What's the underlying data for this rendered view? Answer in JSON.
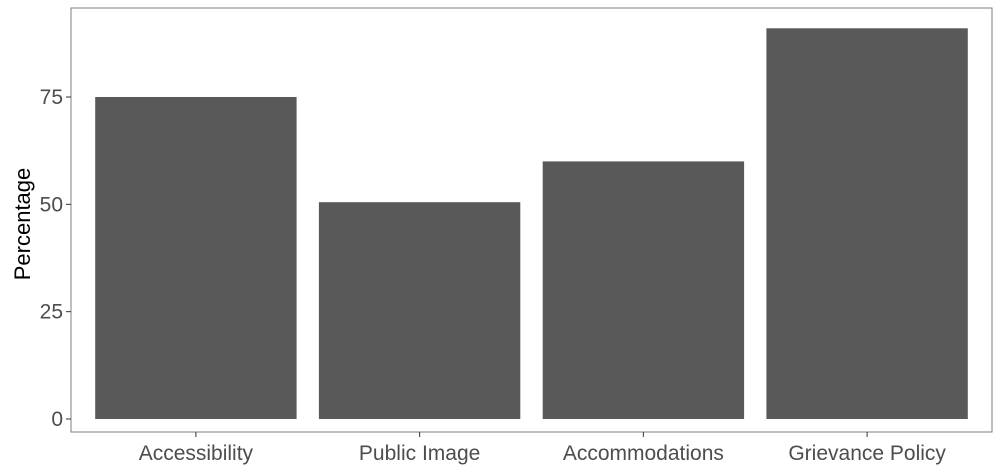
{
  "chart_data": {
    "type": "bar",
    "title": "",
    "xlabel": "",
    "ylabel": "Percentage",
    "categories": [
      "Accessibility",
      "Public Image",
      "Accommodations",
      "Grievance Policy"
    ],
    "values": [
      75,
      50.5,
      60,
      91
    ],
    "ylim": [
      0,
      95.5
    ],
    "yticks": [
      0,
      25,
      50,
      75
    ],
    "grid": false,
    "legend": "none",
    "colors": {
      "bar": "#595959",
      "panel_border": "#7f7f7f",
      "tick_label": "#4d4d4d",
      "axis_title": "#000000"
    }
  }
}
